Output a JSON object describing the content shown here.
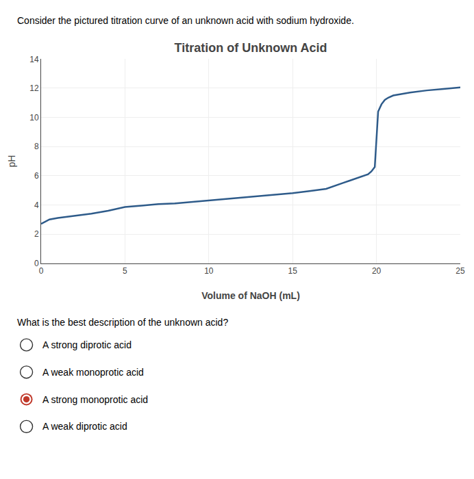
{
  "chart_data": {
    "type": "line",
    "title": "Titration of Unknown Acid",
    "x_label": "Volume of NaOH (mL)",
    "y_label": "pH",
    "x": [
      0,
      0.5,
      1,
      2,
      3,
      4,
      5,
      6,
      7,
      8,
      9,
      10,
      11,
      12,
      13,
      14,
      15,
      16,
      17,
      18,
      18.5,
      19,
      19.3,
      19.5,
      19.7,
      19.9,
      20.0,
      20.1,
      20.3,
      20.5,
      20.7,
      21,
      22,
      23,
      24,
      25
    ],
    "values": [
      2.7,
      3.0,
      3.1,
      3.25,
      3.4,
      3.6,
      3.85,
      3.95,
      4.05,
      4.1,
      4.2,
      4.3,
      4.4,
      4.5,
      4.6,
      4.7,
      4.8,
      4.95,
      5.1,
      5.5,
      5.7,
      5.9,
      6.0,
      6.1,
      6.3,
      6.6,
      8.5,
      10.4,
      10.9,
      11.2,
      11.35,
      11.5,
      11.7,
      11.85,
      11.95,
      12.05
    ],
    "color": "#2E5B8A",
    "xlim": [
      0,
      25
    ],
    "ylim": [
      0,
      14
    ],
    "xticks": [
      0,
      5,
      10,
      15,
      20,
      25
    ],
    "yticks": [
      0,
      2,
      4,
      6,
      8,
      10,
      12,
      14
    ],
    "grid": true,
    "annotations": [
      {
        "text": "Consider the pictured titration curve of an unknown acid with sodium hydroxide."
      },
      {
        "text": "What is the best description of the unknown acid?"
      },
      {
        "text": "A strong diprotic acid",
        "marker": "circle-open"
      },
      {
        "text": "A weak monoprotic acid",
        "marker": "circle-open"
      },
      {
        "text": "A strong monoprotic acid",
        "marker": "circle-dot",
        "color": "#c0392b"
      },
      {
        "text": "A weak diprotic acid",
        "marker": "circle-open"
      }
    ]
  }
}
